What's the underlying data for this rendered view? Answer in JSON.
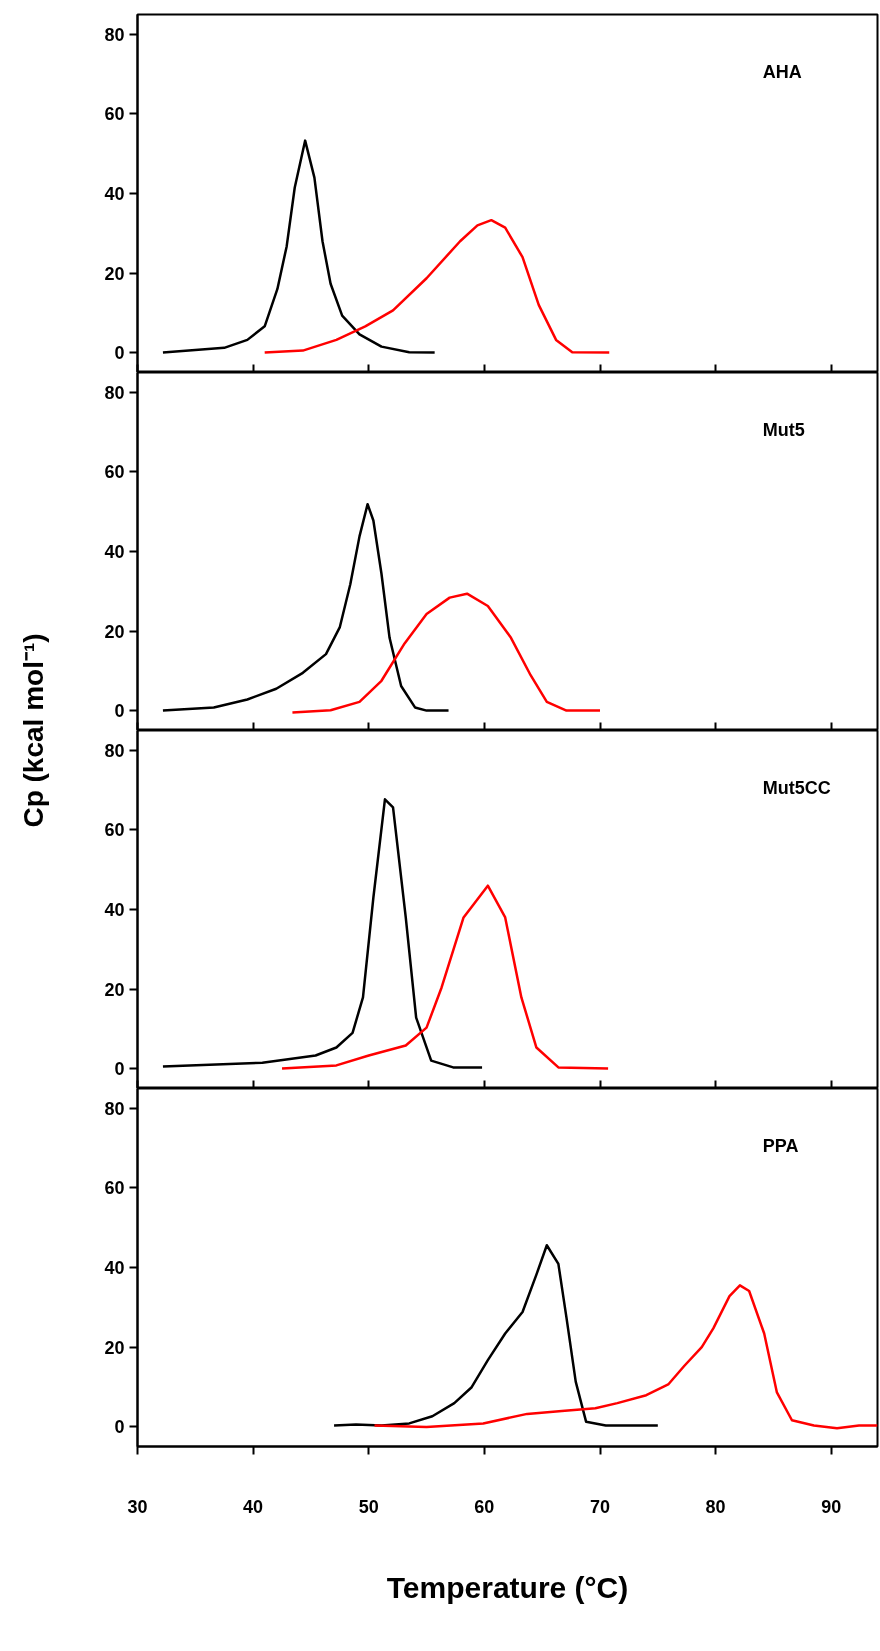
{
  "chart_data": [
    {
      "type": "line",
      "title": "AHA",
      "xlim": [
        30,
        94
      ],
      "ylim": [
        -5,
        85
      ],
      "xticks": [
        30,
        40,
        50,
        60,
        70,
        80,
        90
      ],
      "yticks": [
        0,
        20,
        40,
        60,
        80
      ],
      "tick_labels": "y",
      "grid": false,
      "series": [
        {
          "color": "#000000",
          "x": [
            32.2,
            37.5,
            39.5,
            41,
            42.1,
            42.9,
            43.6,
            44.5,
            45.3,
            46,
            46.7,
            47.7,
            49.2,
            51.1,
            53.5,
            55.7
          ],
          "values": [
            0,
            1.2,
            3.2,
            6.6,
            16,
            26.7,
            41.5,
            53.3,
            44,
            28,
            17.3,
            9.3,
            4.6,
            1.5,
            0.1,
            0
          ]
        },
        {
          "color": "#ff0000",
          "x": [
            41,
            44.3,
            47.2,
            49.7,
            52.1,
            55,
            57.9,
            59.4,
            60.6,
            61.8,
            63.3,
            64.7,
            66.2,
            67.6,
            70.8
          ],
          "values": [
            0,
            0.5,
            3.2,
            6.6,
            10.6,
            18.7,
            28,
            32,
            33.3,
            31.4,
            24,
            12,
            3.2,
            0.1,
            0
          ]
        }
      ]
    },
    {
      "type": "line",
      "title": "Mut5",
      "ylabel": "Cp (kcal mol⁻¹)",
      "xlim": [
        30,
        94
      ],
      "ylim": [
        -5,
        85
      ],
      "xticks": [
        30,
        40,
        50,
        60,
        70,
        80,
        90
      ],
      "yticks": [
        0,
        20,
        40,
        60,
        80
      ],
      "tick_labels": "y",
      "grid": false,
      "series": [
        {
          "color": "#000000",
          "x": [
            32.2,
            36.6,
            39.5,
            42,
            44.3,
            46.3,
            47.5,
            48.4,
            49.2,
            49.9,
            50.4,
            51.1,
            51.8,
            52.8,
            54,
            55,
            56.9
          ],
          "values": [
            0,
            0.8,
            2.8,
            5.5,
            9.5,
            14.2,
            21,
            31.7,
            43.8,
            51.9,
            47.8,
            34.4,
            18.3,
            6.2,
            0.8,
            0,
            0
          ]
        },
        {
          "color": "#ff0000",
          "x": [
            43.4,
            46.7,
            49.2,
            51.1,
            53.1,
            55,
            57,
            58.5,
            60.3,
            62.3,
            64,
            65.4,
            67.1,
            70
          ],
          "values": [
            -0.5,
            0.1,
            2.2,
            7.5,
            16.9,
            24.3,
            28.4,
            29.4,
            26.3,
            18.3,
            8.9,
            2.2,
            0,
            0
          ]
        }
      ]
    },
    {
      "type": "line",
      "title": "Mut5CC",
      "xlim": [
        30,
        94
      ],
      "ylim": [
        -5,
        85
      ],
      "xticks": [
        30,
        40,
        50,
        60,
        70,
        80,
        90
      ],
      "yticks": [
        0,
        20,
        40,
        60,
        80
      ],
      "tick_labels": "y",
      "grid": false,
      "series": [
        {
          "color": "#000000",
          "x": [
            32.2,
            40.8,
            45.4,
            47.2,
            48.6,
            49.5,
            50.4,
            51.4,
            52.1,
            53.2,
            54.1,
            55.4,
            57.3,
            59.8
          ],
          "values": [
            0.5,
            1.5,
            3.3,
            5.3,
            9,
            17.9,
            43,
            67.7,
            65.7,
            38,
            12.8,
            2,
            0.3,
            0.3
          ]
        },
        {
          "color": "#ff0000",
          "x": [
            42.5,
            47.2,
            50,
            53.2,
            55,
            56.3,
            58.2,
            60.3,
            61.8,
            63.2,
            64.5,
            66.4,
            70.7
          ],
          "values": [
            0,
            0.8,
            3.3,
            5.8,
            10.3,
            20.4,
            38,
            46,
            38,
            17.9,
            5.3,
            0.3,
            0
          ]
        }
      ]
    },
    {
      "type": "line",
      "title": "PPA",
      "xlabel": "Temperature (°C)",
      "xlim": [
        30,
        94
      ],
      "ylim": [
        -5,
        85
      ],
      "xticks": [
        30,
        40,
        50,
        60,
        70,
        80,
        90
      ],
      "yticks": [
        0,
        20,
        40,
        60,
        80
      ],
      "grid": false,
      "series": [
        {
          "color": "#000000",
          "x": [
            47,
            48.9,
            51.1,
            53.5,
            55.5,
            57.4,
            58.9,
            60.3,
            61.8,
            63.3,
            64.5,
            65.4,
            66.4,
            67.1,
            67.9,
            68.8,
            70.5,
            73,
            75
          ],
          "values": [
            0.3,
            0.5,
            0.3,
            0.8,
            2.6,
            5.9,
            9.9,
            16.7,
            23.4,
            28.8,
            38.2,
            45.6,
            40.9,
            27.4,
            11.3,
            1.2,
            0.3,
            0.3,
            0.3
          ]
        },
        {
          "color": "#ff0000",
          "x": [
            50.5,
            55,
            59.9,
            63.7,
            66.7,
            69.6,
            71.5,
            74,
            75.9,
            77.3,
            78.8,
            79.8,
            81.2,
            82.1,
            82.9,
            84.2,
            85.3,
            86.6,
            88.5,
            90.5,
            92.4,
            94
          ],
          "values": [
            0.3,
            -0.1,
            0.8,
            3.2,
            3.9,
            4.6,
            5.9,
            7.9,
            10.6,
            15.3,
            20,
            24.7,
            32.8,
            35.5,
            34.1,
            23.4,
            8.6,
            1.6,
            0.3,
            -0.4,
            0.3,
            0.3
          ]
        }
      ]
    }
  ]
}
